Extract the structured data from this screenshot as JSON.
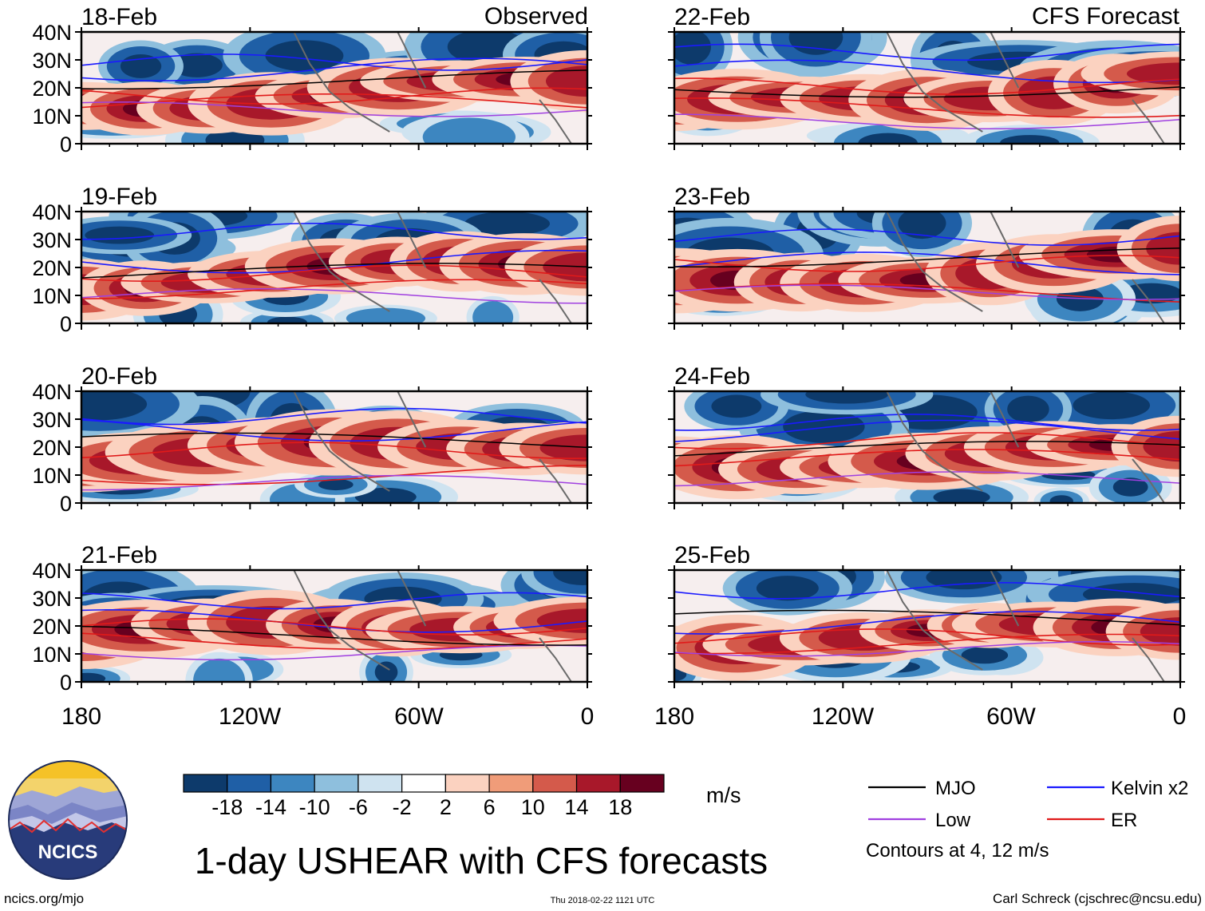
{
  "figure": {
    "main_title": "1-day USHEAR with CFS forecasts",
    "left_column_label": "Observed",
    "right_column_label": "CFS Forecast",
    "timestamp": "Thu 2018-02-22 1121 UTC",
    "website": "ncics.org/mjo",
    "author": "Carl Schreck (cjschrec@ncsu.edu)",
    "logo_text": "NCICS"
  },
  "axes": {
    "y_ticks": [
      "40N",
      "30N",
      "20N",
      "10N",
      "0"
    ],
    "x_ticks": [
      "180",
      "120W",
      "60W",
      "0"
    ]
  },
  "panels": [
    {
      "date": "18-Feb",
      "source": "Observed"
    },
    {
      "date": "19-Feb",
      "source": "Observed"
    },
    {
      "date": "20-Feb",
      "source": "Observed"
    },
    {
      "date": "21-Feb",
      "source": "Observed"
    },
    {
      "date": "22-Feb",
      "source": "CFS Forecast"
    },
    {
      "date": "23-Feb",
      "source": "CFS Forecast"
    },
    {
      "date": "24-Feb",
      "source": "CFS Forecast"
    },
    {
      "date": "25-Feb",
      "source": "CFS Forecast"
    }
  ],
  "colorbar": {
    "units": "m/s",
    "labels": [
      "-18",
      "-14",
      "-10",
      "-6",
      "-2",
      "2",
      "6",
      "10",
      "14",
      "18"
    ],
    "colors": [
      "#0d3a6b",
      "#1f5fa6",
      "#3d86c0",
      "#8ebfdd",
      "#cfe3f0",
      "#ffffff",
      "#fbd2c0",
      "#f09c79",
      "#d45a4b",
      "#a8182a",
      "#67001f"
    ]
  },
  "legend": {
    "items": [
      {
        "label": "MJO",
        "color": "#000000"
      },
      {
        "label": "Kelvin x2",
        "color": "#1a1aff"
      },
      {
        "label": "Low",
        "color": "#a040e0"
      },
      {
        "label": "ER",
        "color": "#e01a1a"
      }
    ],
    "note": "Contours at 4, 12 m/s"
  }
}
